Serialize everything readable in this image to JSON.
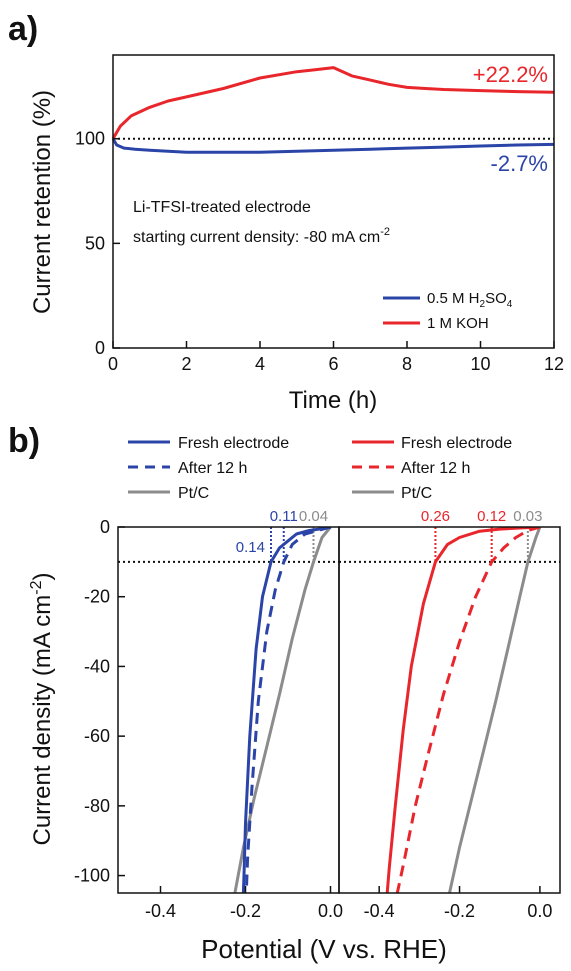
{
  "panel_labels": [
    "a)",
    "b)"
  ],
  "colors": {
    "blue": "#2b44a8",
    "red": "#e8262b",
    "gray": "#8c8c8c",
    "black": "#111111"
  },
  "chart_data": [
    {
      "type": "line",
      "panel": "a)",
      "xlabel": "Time (h)",
      "ylabel": "Current retention (%)",
      "xlim": [
        0,
        12
      ],
      "ylim": [
        0,
        140
      ],
      "xticks": [
        0,
        2,
        4,
        6,
        8,
        10,
        12
      ],
      "yticks": [
        0,
        50,
        100
      ],
      "reference_line_y": 100,
      "annotation_lines": [
        "Li-TFSI-treated electrode",
        "starting current density: -80 mA cm"
      ],
      "annotation_superscript": "-2",
      "series": [
        {
          "name": "0.5 M H2SO4",
          "color": "#2b44a8",
          "x": [
            0,
            0.1,
            0.3,
            0.6,
            1,
            1.5,
            2,
            3,
            4,
            5,
            6,
            7,
            8,
            9,
            10,
            11,
            12
          ],
          "y": [
            100,
            97,
            95.5,
            95,
            94.5,
            94,
            93.5,
            93.5,
            93.5,
            94,
            94.5,
            95,
            95.5,
            96,
            96.5,
            97,
            97.3
          ],
          "end_label": "-2.7%"
        },
        {
          "name": "1 M KOH",
          "color": "#e8262b",
          "x": [
            0,
            0.2,
            0.5,
            1,
            1.5,
            2,
            3,
            4,
            5,
            5.5,
            6,
            6.5,
            7,
            7.5,
            8,
            8.5,
            9,
            10,
            11,
            12
          ],
          "y": [
            100,
            106,
            111,
            115,
            118,
            120,
            124,
            129,
            132,
            133,
            134,
            130,
            128,
            126,
            124.5,
            124,
            123.5,
            123,
            122.5,
            122.2
          ],
          "end_label": "+22.2%"
        }
      ],
      "legend": {
        "position": "bottom-right",
        "entries": [
          {
            "main": "0.5 M H",
            "sub1": "2",
            "mid": "SO",
            "sub2": "4"
          },
          {
            "main": "1 M KOH"
          }
        ]
      }
    },
    {
      "type": "line",
      "panel": "b)",
      "xlabel": "Potential (V vs. RHE)",
      "ylabel": "Current density (mA cm",
      "ylabel_superscript": "-2",
      "ylabel_close": ")",
      "ylim": [
        -105,
        0
      ],
      "yticks": [
        0,
        -20,
        -40,
        -60,
        -80,
        -100
      ],
      "reference_line_y": -10,
      "subplots": [
        {
          "xlim": [
            -0.5,
            0.02
          ],
          "xticks": [
            -0.4,
            -0.2,
            0.0
          ],
          "tick_labels": [
            "-0.4",
            "-0.2",
            "0.0"
          ],
          "series": [
            {
              "name": "Fresh electrode",
              "color": "#2b44a8",
              "dash": "solid",
              "x": [
                0.0,
                -0.02,
                -0.05,
                -0.08,
                -0.1,
                -0.12,
                -0.14,
                -0.16,
                -0.175,
                -0.19,
                -0.2,
                -0.203,
                -0.205
              ],
              "y": [
                0,
                -0.5,
                -1,
                -2,
                -4,
                -6,
                -10,
                -20,
                -35,
                -60,
                -85,
                -98,
                -105
              ]
            },
            {
              "name": "After 12 h",
              "color": "#2b44a8",
              "dash": "dash",
              "x": [
                0.0,
                -0.03,
                -0.06,
                -0.09,
                -0.11,
                -0.13,
                -0.15,
                -0.17,
                -0.185,
                -0.195,
                -0.198
              ],
              "y": [
                0,
                -1,
                -2,
                -5,
                -10,
                -18,
                -30,
                -50,
                -75,
                -95,
                -105
              ]
            },
            {
              "name": "Pt/C",
              "color": "#8c8c8c",
              "dash": "solid",
              "x": [
                0.0,
                -0.02,
                -0.04,
                -0.06,
                -0.09,
                -0.12,
                -0.15,
                -0.18,
                -0.205,
                -0.225
              ],
              "y": [
                0,
                -3,
                -10,
                -18,
                -32,
                -48,
                -63,
                -78,
                -92,
                -105
              ]
            }
          ],
          "markers": [
            {
              "value": "0.14",
              "x": -0.14,
              "color": "#2b44a8"
            },
            {
              "value": "0.11",
              "x": -0.11,
              "color": "#2b44a8"
            },
            {
              "value": "0.04",
              "x": -0.04,
              "color": "#8c8c8c"
            }
          ]
        },
        {
          "xlim": [
            -0.5,
            0.05
          ],
          "xticks": [
            -0.4,
            -0.2,
            0.0
          ],
          "tick_labels": [
            "-0.4",
            "-0.2",
            "0.0"
          ],
          "series": [
            {
              "name": "Fresh electrode",
              "color": "#e8262b",
              "dash": "solid",
              "x": [
                0.0,
                -0.05,
                -0.1,
                -0.15,
                -0.2,
                -0.23,
                -0.26,
                -0.29,
                -0.32,
                -0.34,
                -0.36,
                -0.375,
                -0.38
              ],
              "y": [
                0,
                -0.3,
                -0.6,
                -1.2,
                -3,
                -5,
                -10,
                -22,
                -40,
                -58,
                -80,
                -98,
                -105
              ]
            },
            {
              "name": "After 12 h",
              "color": "#e8262b",
              "dash": "dash",
              "x": [
                0.0,
                -0.03,
                -0.06,
                -0.09,
                -0.12,
                -0.16,
                -0.2,
                -0.24,
                -0.28,
                -0.31,
                -0.34,
                -0.355
              ],
              "y": [
                0,
                -1,
                -3,
                -6,
                -10,
                -20,
                -33,
                -48,
                -66,
                -80,
                -97,
                -105
              ]
            },
            {
              "name": "Pt/C",
              "color": "#8c8c8c",
              "dash": "solid",
              "x": [
                0.0,
                -0.01,
                -0.03,
                -0.05,
                -0.08,
                -0.11,
                -0.14,
                -0.17,
                -0.2,
                -0.225
              ],
              "y": [
                0,
                -3,
                -10,
                -20,
                -35,
                -50,
                -64,
                -78,
                -92,
                -105
              ]
            }
          ],
          "markers": [
            {
              "value": "0.26",
              "x": -0.26,
              "color": "#e8262b"
            },
            {
              "value": "0.12",
              "x": -0.12,
              "color": "#e8262b"
            },
            {
              "value": "0.03",
              "x": -0.03,
              "color": "#8c8c8c"
            }
          ]
        }
      ],
      "legend": {
        "position": "top",
        "groups": [
          {
            "color": "#2b44a8",
            "entries": [
              "Fresh electrode",
              "After 12 h",
              "Pt/C"
            ]
          },
          {
            "color": "#e8262b",
            "entries": [
              "Fresh electrode",
              "After 12 h",
              "Pt/C"
            ]
          }
        ]
      }
    }
  ]
}
